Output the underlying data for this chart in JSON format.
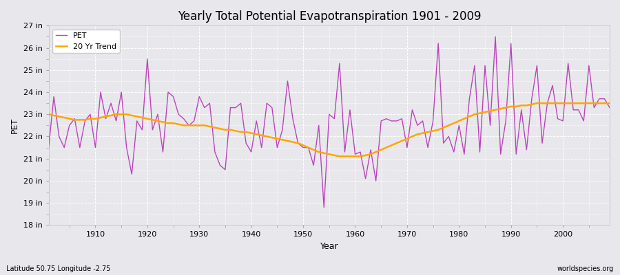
{
  "title": "Yearly Total Potential Evapotranspiration 1901 - 2009",
  "xlabel": "Year",
  "ylabel": "PET",
  "subtitle_left": "Latitude 50.75 Longitude -2.75",
  "subtitle_right": "worldspecies.org",
  "pet_color": "#BB44BB",
  "trend_color": "#FFA500",
  "background_color": "#E8E8EC",
  "grid_color": "#FFFFFF",
  "ylim_min": 18,
  "ylim_max": 27,
  "ytick_labels": [
    "18 in",
    "19 in",
    "20 in",
    "21 in",
    "22 in",
    "23 in",
    "24 in",
    "25 in",
    "26 in",
    "27 in"
  ],
  "ytick_values": [
    18,
    19,
    20,
    21,
    22,
    23,
    24,
    25,
    26,
    27
  ],
  "years": [
    1901,
    1902,
    1903,
    1904,
    1905,
    1906,
    1907,
    1908,
    1909,
    1910,
    1911,
    1912,
    1913,
    1914,
    1915,
    1916,
    1917,
    1918,
    1919,
    1920,
    1921,
    1922,
    1923,
    1924,
    1925,
    1926,
    1927,
    1928,
    1929,
    1930,
    1931,
    1932,
    1933,
    1934,
    1935,
    1936,
    1937,
    1938,
    1939,
    1940,
    1941,
    1942,
    1943,
    1944,
    1945,
    1946,
    1947,
    1948,
    1949,
    1950,
    1951,
    1952,
    1953,
    1954,
    1955,
    1956,
    1957,
    1958,
    1959,
    1960,
    1961,
    1962,
    1963,
    1964,
    1965,
    1966,
    1967,
    1968,
    1969,
    1970,
    1971,
    1972,
    1973,
    1974,
    1975,
    1976,
    1977,
    1978,
    1979,
    1980,
    1981,
    1982,
    1983,
    1984,
    1985,
    1986,
    1987,
    1988,
    1989,
    1990,
    1991,
    1992,
    1993,
    1994,
    1995,
    1996,
    1997,
    1998,
    1999,
    2000,
    2001,
    2002,
    2003,
    2004,
    2005,
    2006,
    2007,
    2008,
    2009
  ],
  "pet_values": [
    21.5,
    23.8,
    22.0,
    21.5,
    22.5,
    22.8,
    21.5,
    22.7,
    23.0,
    21.5,
    24.0,
    22.8,
    23.5,
    22.7,
    24.0,
    21.5,
    20.3,
    22.7,
    22.3,
    25.5,
    22.3,
    23.0,
    21.3,
    24.0,
    23.8,
    23.0,
    22.8,
    22.5,
    22.7,
    23.8,
    23.3,
    23.5,
    21.3,
    20.7,
    20.5,
    23.3,
    23.3,
    23.5,
    21.7,
    21.3,
    22.7,
    21.5,
    23.5,
    23.3,
    21.5,
    22.3,
    24.5,
    22.8,
    21.7,
    21.5,
    21.5,
    20.7,
    22.5,
    18.8,
    23.0,
    22.8,
    25.3,
    21.3,
    23.2,
    21.2,
    21.3,
    20.1,
    21.4,
    20.0,
    22.7,
    22.8,
    22.7,
    22.7,
    22.8,
    21.5,
    23.2,
    22.5,
    22.7,
    21.5,
    22.7,
    26.2,
    21.7,
    22.0,
    21.3,
    22.5,
    21.2,
    23.7,
    25.2,
    21.3,
    25.2,
    22.5,
    26.5,
    21.2,
    22.7,
    26.2,
    21.2,
    23.2,
    21.4,
    23.7,
    25.2,
    21.7,
    23.5,
    24.3,
    22.8,
    22.7,
    25.3,
    23.2,
    23.2,
    22.7,
    25.2,
    23.3,
    23.7,
    23.7,
    23.3
  ],
  "trend_years": [
    1901,
    1902,
    1903,
    1904,
    1905,
    1906,
    1907,
    1908,
    1909,
    1910,
    1911,
    1912,
    1913,
    1914,
    1915,
    1916,
    1917,
    1918,
    1919,
    1920,
    1921,
    1922,
    1923,
    1924,
    1925,
    1926,
    1927,
    1928,
    1929,
    1930,
    1931,
    1932,
    1933,
    1934,
    1935,
    1936,
    1937,
    1938,
    1939,
    1940,
    1941,
    1942,
    1943,
    1944,
    1945,
    1946,
    1947,
    1948,
    1949,
    1950,
    1951,
    1952,
    1953,
    1954,
    1955,
    1956,
    1957,
    1958,
    1959,
    1960,
    1961,
    1962,
    1963,
    1964,
    1965,
    1966,
    1967,
    1968,
    1969,
    1970,
    1971,
    1972,
    1973,
    1974,
    1975,
    1976,
    1977,
    1978,
    1979,
    1980,
    1981,
    1982,
    1983,
    1984,
    1985,
    1986,
    1987,
    1988,
    1989,
    1990,
    1991,
    1992,
    1993,
    1994,
    1995,
    1996,
    1997,
    1998,
    1999,
    2000,
    2001,
    2002,
    2003,
    2004,
    2005,
    2006,
    2007,
    2008,
    2009
  ],
  "trend_values": [
    23.0,
    22.95,
    22.9,
    22.85,
    22.8,
    22.75,
    22.75,
    22.75,
    22.8,
    22.8,
    22.85,
    22.9,
    22.95,
    23.0,
    23.0,
    23.0,
    22.95,
    22.9,
    22.85,
    22.8,
    22.75,
    22.7,
    22.65,
    22.6,
    22.6,
    22.55,
    22.5,
    22.5,
    22.5,
    22.5,
    22.5,
    22.45,
    22.4,
    22.35,
    22.3,
    22.3,
    22.25,
    22.2,
    22.2,
    22.15,
    22.1,
    22.05,
    22.0,
    21.95,
    21.9,
    21.85,
    21.8,
    21.75,
    21.7,
    21.6,
    21.5,
    21.4,
    21.3,
    21.25,
    21.2,
    21.15,
    21.1,
    21.1,
    21.1,
    21.1,
    21.1,
    21.15,
    21.2,
    21.3,
    21.4,
    21.5,
    21.6,
    21.7,
    21.8,
    21.9,
    22.0,
    22.1,
    22.15,
    22.2,
    22.25,
    22.3,
    22.4,
    22.5,
    22.6,
    22.7,
    22.8,
    22.9,
    23.0,
    23.05,
    23.1,
    23.15,
    23.2,
    23.25,
    23.3,
    23.35,
    23.35,
    23.4,
    23.4,
    23.45,
    23.5,
    23.5,
    23.5,
    23.5,
    23.5,
    23.5,
    23.5,
    23.5,
    23.5,
    23.5,
    23.5,
    23.5,
    23.5,
    23.5,
    23.5
  ]
}
